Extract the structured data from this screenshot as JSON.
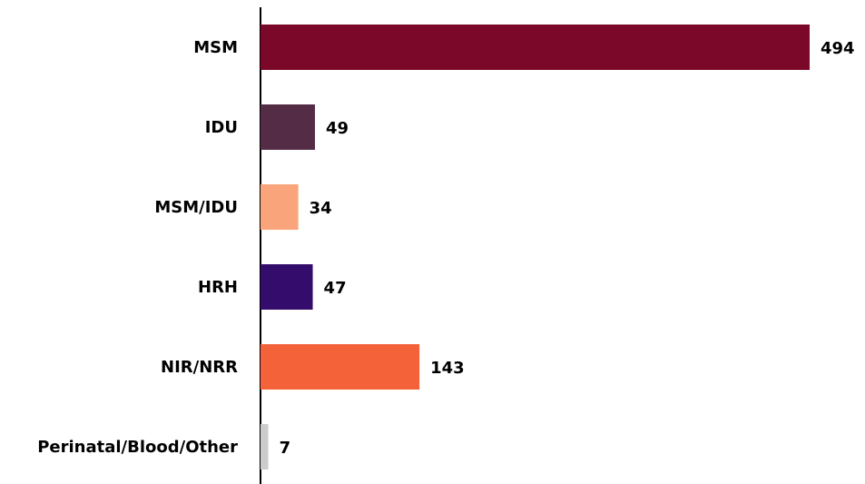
{
  "chart_data": {
    "type": "bar",
    "orientation": "horizontal",
    "categories": [
      "MSM",
      "IDU",
      "MSM/IDU",
      "HRH",
      "NIR/NRR",
      "Perinatal/Blood/Other"
    ],
    "values": [
      494,
      49,
      34,
      47,
      143,
      7
    ],
    "colors": [
      "#7b0828",
      "#552c45",
      "#f9a47a",
      "#330c6c",
      "#f4623a",
      "#cccccc"
    ]
  }
}
